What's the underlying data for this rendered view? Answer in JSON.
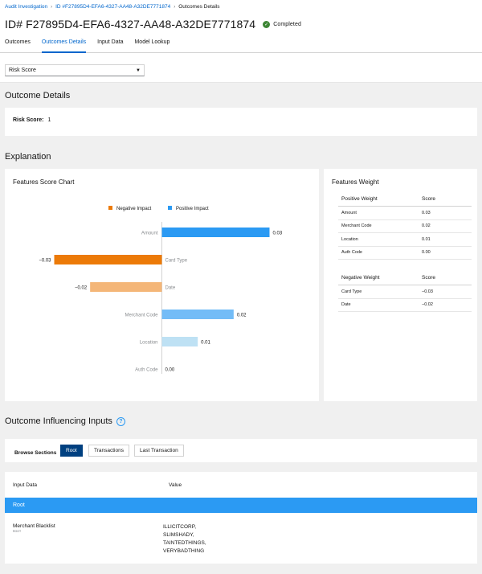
{
  "breadcrumb": {
    "items": [
      "Audit Investigation",
      "ID #F27895D4-EFA6-4327-AA48-A32DE7771874",
      "Outcomes Details"
    ]
  },
  "header": {
    "title": "ID# F27895D4-EFA6-4327-AA48-A32DE7771874",
    "status": "Completed"
  },
  "tabs": [
    "Outcomes",
    "Outcomes Details",
    "Input Data",
    "Model Lookup"
  ],
  "outcome_select": {
    "value": "Risk Score"
  },
  "outcome_details": {
    "title": "Outcome Details",
    "risk_label": "Risk Score:",
    "risk_value": "1"
  },
  "explanation": {
    "title": "Explanation",
    "chart_title": "Features Score Chart",
    "weights_title": "Features Weight"
  },
  "chart_data": {
    "type": "bar",
    "orientation": "horizontal",
    "categories": [
      "Amount",
      "Card Type",
      "Date",
      "Merchant Code",
      "Location",
      "Auth Code"
    ],
    "values": [
      0.03,
      -0.03,
      -0.02,
      0.02,
      0.01,
      0.0
    ],
    "value_labels": [
      "0.03",
      "−0.03",
      "−0.02",
      "0.02",
      "0.01",
      "0.00"
    ],
    "legend": [
      "Negative Impact",
      "Positive Impact"
    ],
    "legend_position": "top",
    "colors": [
      "#2b9af3",
      "#ec7a08",
      "#f4b678",
      "#73bcf7",
      "#bee1f4",
      "#bee1f4"
    ],
    "legend_colors": [
      "#ec7a08",
      "#2b9af3"
    ],
    "xlim": [
      -0.03,
      0.03
    ]
  },
  "positive_weights": {
    "header": [
      "Positive Weight",
      "Score"
    ],
    "rows": [
      [
        "Amount",
        "0.03"
      ],
      [
        "Merchant Code",
        "0.02"
      ],
      [
        "Location",
        "0.01"
      ],
      [
        "Auth Code",
        "0.00"
      ]
    ]
  },
  "negative_weights": {
    "header": [
      "Negative Weight",
      "Score"
    ],
    "rows": [
      [
        "Card Type",
        "−0.03"
      ],
      [
        "Date",
        "−0.02"
      ]
    ]
  },
  "influencing": {
    "title": "Outcome Influencing Inputs",
    "browse_label": "Browse Sections",
    "sections": [
      "Root",
      "Transactions",
      "Last Transaction"
    ],
    "columns": [
      "Input Data",
      "Value"
    ],
    "root_label": "Root",
    "row_label": "Merchant Blacklist",
    "row_sub": "ROOT",
    "row_value": "ILLICITCORP,\nSLIMSHADY,\nTAINTEDTHINGS,\nVERYBADTHING"
  }
}
